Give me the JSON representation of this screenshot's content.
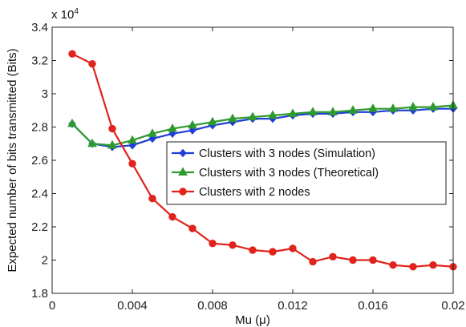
{
  "chart_data": {
    "type": "line",
    "title": "",
    "xlabel": "Mu (μ)",
    "ylabel": "Expected number of bits transmitted (Bits)",
    "y_multiplier_label": "x 10",
    "y_multiplier_exp": "4",
    "xlim": [
      0,
      0.02
    ],
    "ylim": [
      1.8,
      3.4
    ],
    "xticks": [
      0,
      0.004,
      0.008,
      0.012,
      0.016,
      0.02
    ],
    "xtick_labels": [
      "0",
      "0.004",
      "0.008",
      "0.012",
      "0.016",
      "0.02"
    ],
    "yticks": [
      1.8,
      2.0,
      2.2,
      2.4,
      2.6,
      2.8,
      3.0,
      3.2,
      3.4
    ],
    "ytick_labels": [
      "1.8",
      "2",
      "2.2",
      "2.4",
      "2.6",
      "2.8",
      "3",
      "3.2",
      "3.4"
    ],
    "grid": false,
    "legend_position": "center-right",
    "x": [
      0.001,
      0.002,
      0.003,
      0.004,
      0.005,
      0.006,
      0.007,
      0.008,
      0.009,
      0.01,
      0.011,
      0.012,
      0.013,
      0.014,
      0.015,
      0.016,
      0.017,
      0.018,
      0.019,
      0.02
    ],
    "series": [
      {
        "name": "Clusters with 3 nodes (Simulation)",
        "color": "#1f3fd6",
        "marker": "diamond",
        "values": [
          2.82,
          2.7,
          2.68,
          2.69,
          2.73,
          2.76,
          2.78,
          2.81,
          2.83,
          2.85,
          2.85,
          2.87,
          2.88,
          2.88,
          2.89,
          2.89,
          2.9,
          2.9,
          2.91,
          2.91
        ]
      },
      {
        "name": "Clusters with 3 nodes (Theoretical)",
        "color": "#2e9a2e",
        "marker": "triangle",
        "values": [
          2.82,
          2.7,
          2.69,
          2.72,
          2.76,
          2.79,
          2.81,
          2.83,
          2.85,
          2.86,
          2.87,
          2.88,
          2.89,
          2.89,
          2.9,
          2.91,
          2.91,
          2.92,
          2.92,
          2.93
        ]
      },
      {
        "name": "Clusters with 2 nodes",
        "color": "#e0231c",
        "marker": "circle",
        "values": [
          3.24,
          3.18,
          2.79,
          2.58,
          2.37,
          2.26,
          2.19,
          2.1,
          2.09,
          2.06,
          2.05,
          2.07,
          1.99,
          2.02,
          2.0,
          2.0,
          1.97,
          1.96,
          1.97,
          1.96
        ]
      }
    ]
  }
}
